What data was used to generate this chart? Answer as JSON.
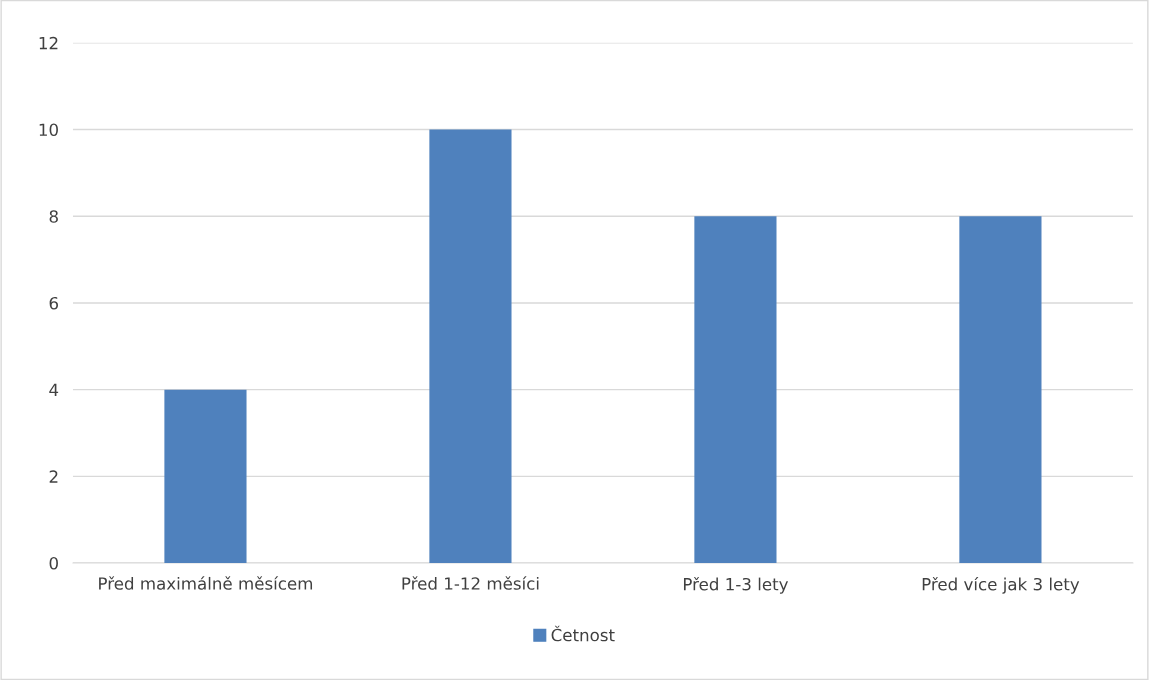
{
  "chart_data": {
    "type": "bar",
    "categories": [
      "Před maximálně měsícem",
      "Před 1-12 měsíci",
      "Před 1-3 lety",
      "Před více jak 3 lety"
    ],
    "series": [
      {
        "name": "Četnost",
        "color": "#4f81bd",
        "values": [
          4,
          10,
          8,
          8
        ]
      }
    ],
    "ylim": [
      0,
      12
    ],
    "yticks": [
      0,
      2,
      4,
      6,
      8,
      10,
      12
    ],
    "grid": "y",
    "legend": "bottom"
  }
}
